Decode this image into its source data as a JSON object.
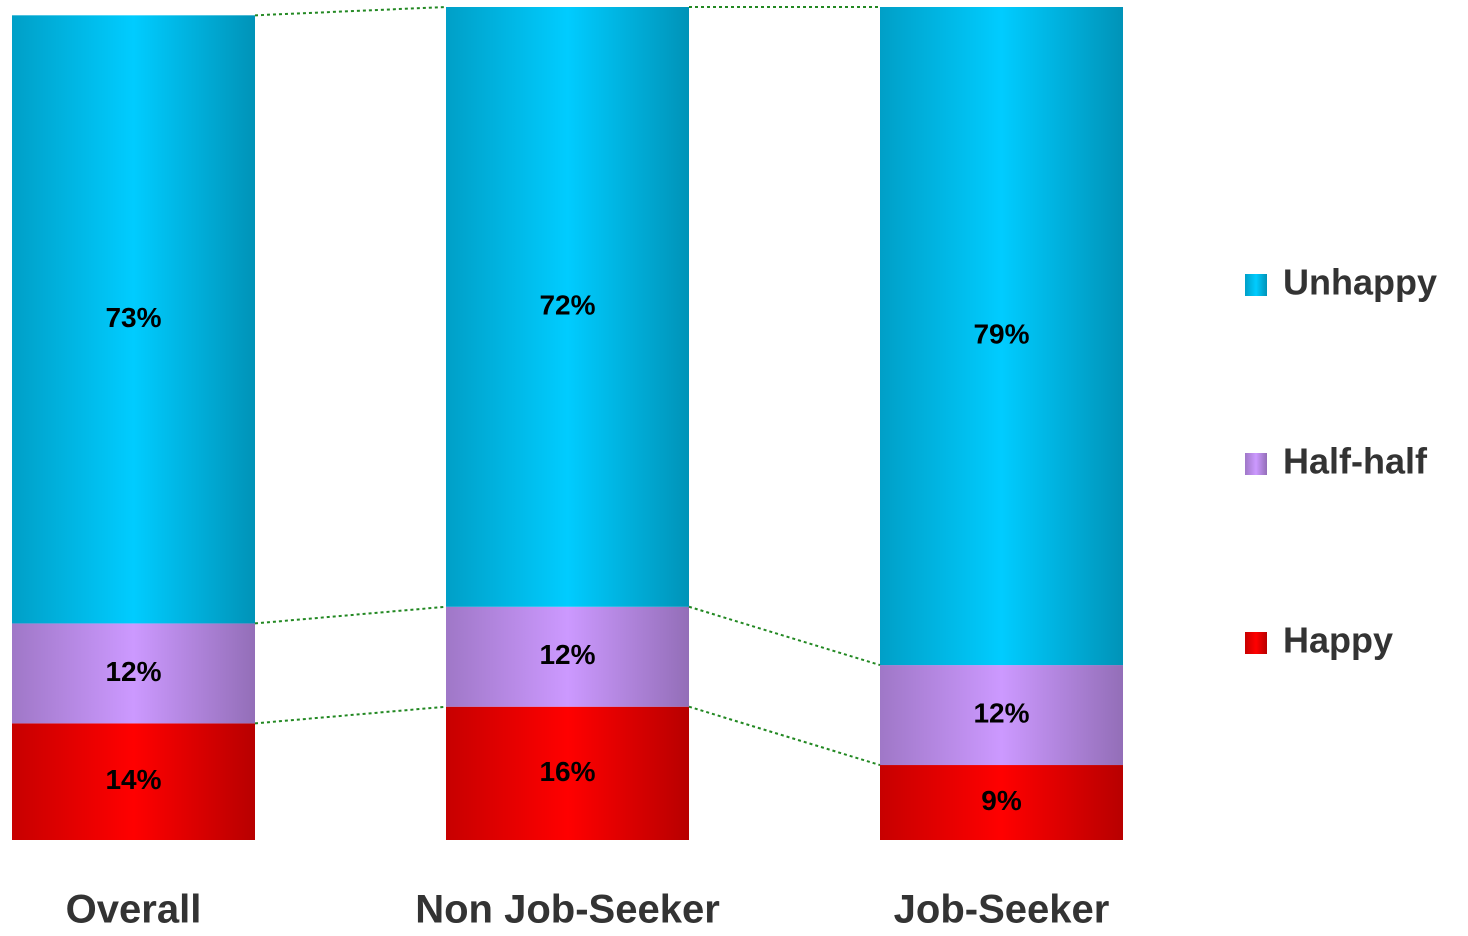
{
  "chart_data": {
    "type": "stacked_bar",
    "categories": [
      "Overall",
      "Non Job-Seeker",
      "Job-Seeker"
    ],
    "series": [
      {
        "name": "Happy",
        "color": "#ff0000",
        "values": [
          14,
          16,
          9
        ],
        "value_labels": [
          "14%",
          "16%",
          "9%"
        ]
      },
      {
        "name": "Half-half",
        "color": "#cc99ff",
        "values": [
          12,
          12,
          12
        ],
        "value_labels": [
          "12%",
          "12%",
          "12%"
        ]
      },
      {
        "name": "Unhappy",
        "color": "#00ccff",
        "values": [
          73,
          72,
          79
        ],
        "value_labels": [
          "73%",
          "72%",
          "79%"
        ]
      }
    ],
    "ylim": [
      0,
      100
    ],
    "legend": "right"
  }
}
